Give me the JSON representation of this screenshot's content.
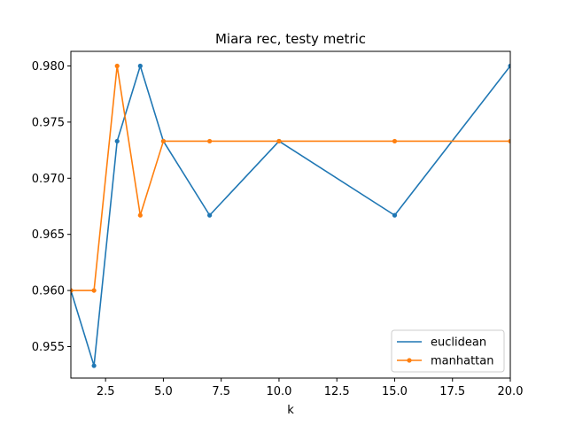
{
  "chart_data": {
    "type": "line",
    "title": "Miara rec, testy metric",
    "xlabel": "k",
    "ylabel": "",
    "xlim": [
      1,
      20
    ],
    "ylim": [
      0.9522,
      0.9813
    ],
    "xticks": [
      2.5,
      5.0,
      7.5,
      10.0,
      12.5,
      15.0,
      17.5,
      20.0
    ],
    "xtick_labels": [
      "2.5",
      "5.0",
      "7.5",
      "10.0",
      "12.5",
      "15.0",
      "17.5",
      "20.0"
    ],
    "yticks": [
      0.955,
      0.96,
      0.965,
      0.97,
      0.975,
      0.98
    ],
    "ytick_labels": [
      "0.955",
      "0.960",
      "0.965",
      "0.970",
      "0.975",
      "0.980"
    ],
    "legend_position": "lower-right",
    "series": [
      {
        "name": "euclidean",
        "color": "#1f77b4",
        "marker": "dot",
        "x": [
          1,
          2,
          3,
          4,
          5,
          7,
          10,
          15,
          20
        ],
        "values": [
          0.96,
          0.9533,
          0.9733,
          0.98,
          0.9733,
          0.9667,
          0.9733,
          0.9667,
          0.98
        ]
      },
      {
        "name": "manhattan",
        "color": "#ff7f0e",
        "marker": "dot",
        "x": [
          1,
          2,
          3,
          4,
          5,
          7,
          10,
          15,
          20
        ],
        "values": [
          0.96,
          0.96,
          0.98,
          0.9667,
          0.9733,
          0.9733,
          0.9733,
          0.9733,
          0.9733
        ]
      }
    ]
  }
}
